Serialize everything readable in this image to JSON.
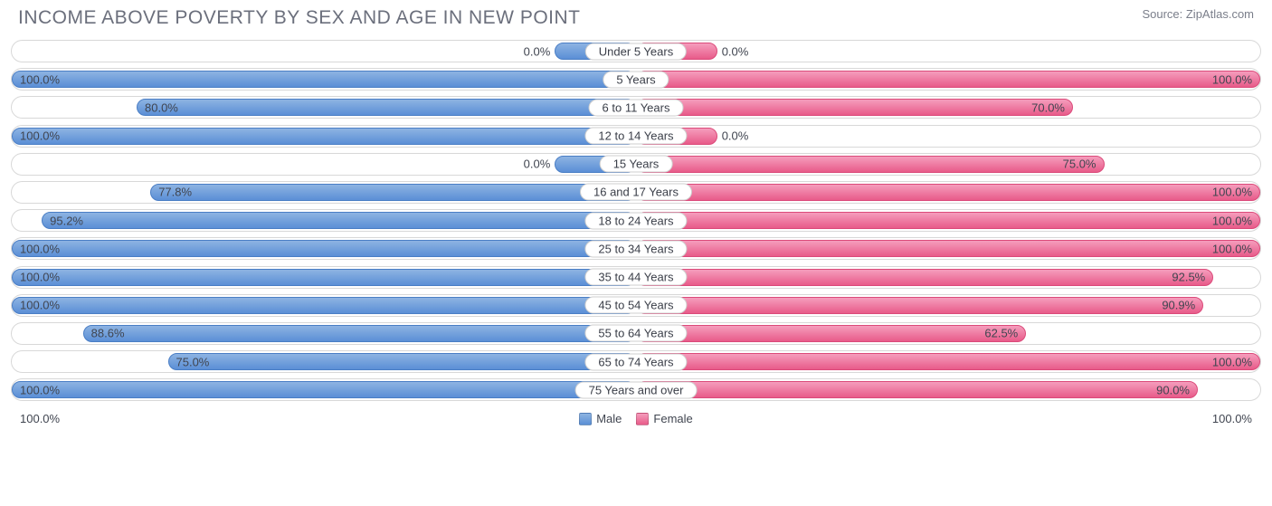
{
  "title": "INCOME ABOVE POVERTY BY SEX AND AGE IN NEW POINT",
  "source": "Source: ZipAtlas.com",
  "chart": {
    "type": "tornado-bar",
    "scale_max": 100.0,
    "axis_left_label": "100.0%",
    "axis_right_label": "100.0%",
    "min_bar_visual_pct": 13.0,
    "label_inside_threshold": 60.0,
    "male": {
      "color_top": "#8db3e2",
      "color_bottom": "#5b8fd6",
      "border_color": "#4a7ec5",
      "legend_label": "Male"
    },
    "female": {
      "color_top": "#f59dbc",
      "color_bottom": "#e85b89",
      "border_color": "#db4a7a",
      "legend_label": "Female"
    },
    "background_color": "#ffffff",
    "track_border_color": "#d8d8d8",
    "label_fontsize": 13,
    "title_fontsize": 21,
    "title_color": "#6b6f7c",
    "rows": [
      {
        "category": "Under 5 Years",
        "male": 0.0,
        "female": 0.0
      },
      {
        "category": "5 Years",
        "male": 100.0,
        "female": 100.0
      },
      {
        "category": "6 to 11 Years",
        "male": 80.0,
        "female": 70.0
      },
      {
        "category": "12 to 14 Years",
        "male": 100.0,
        "female": 0.0
      },
      {
        "category": "15 Years",
        "male": 0.0,
        "female": 75.0
      },
      {
        "category": "16 and 17 Years",
        "male": 77.8,
        "female": 100.0
      },
      {
        "category": "18 to 24 Years",
        "male": 95.2,
        "female": 100.0
      },
      {
        "category": "25 to 34 Years",
        "male": 100.0,
        "female": 100.0
      },
      {
        "category": "35 to 44 Years",
        "male": 100.0,
        "female": 92.5
      },
      {
        "category": "45 to 54 Years",
        "male": 100.0,
        "female": 90.9
      },
      {
        "category": "55 to 64 Years",
        "male": 88.6,
        "female": 62.5
      },
      {
        "category": "65 to 74 Years",
        "male": 75.0,
        "female": 100.0
      },
      {
        "category": "75 Years and over",
        "male": 100.0,
        "female": 90.0
      }
    ]
  }
}
